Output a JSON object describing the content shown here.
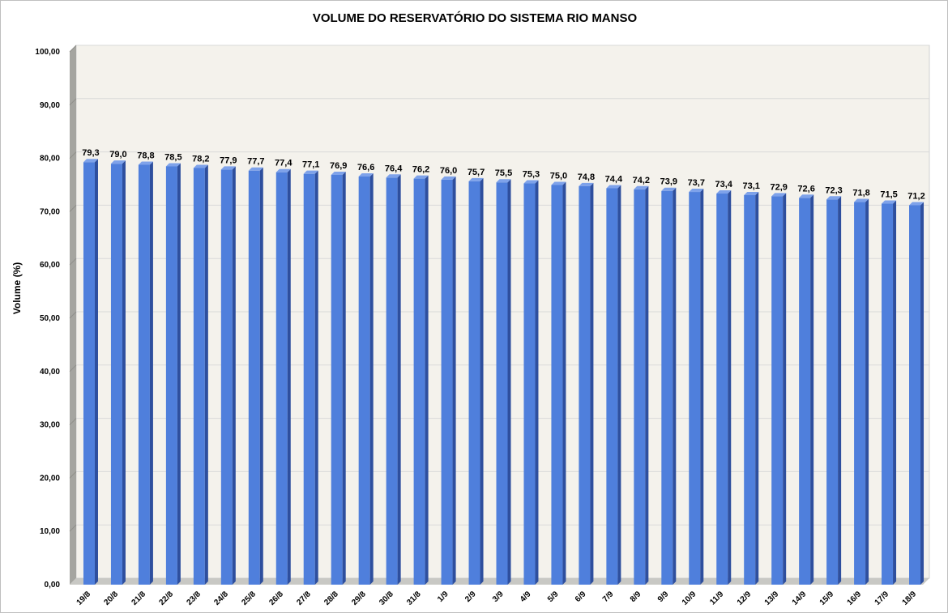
{
  "chart_data": {
    "type": "bar",
    "title": "VOLUME DO RESERVATÓRIO DO SISTEMA RIO MANSO",
    "xlabel": "",
    "ylabel": "Volume (%)",
    "ylim": [
      0,
      100
    ],
    "yticks": [
      "0,00",
      "10,00",
      "20,00",
      "30,00",
      "40,00",
      "50,00",
      "60,00",
      "70,00",
      "80,00",
      "90,00",
      "100,00"
    ],
    "categories": [
      "19/8",
      "20/8",
      "21/8",
      "22/8",
      "23/8",
      "24/8",
      "25/8",
      "26/8",
      "27/8",
      "28/8",
      "29/8",
      "30/8",
      "31/8",
      "1/9",
      "2/9",
      "3/9",
      "4/9",
      "5/9",
      "6/9",
      "7/9",
      "8/9",
      "9/9",
      "10/9",
      "11/9",
      "12/9",
      "13/9",
      "14/9",
      "15/9",
      "16/9",
      "17/9",
      "18/9"
    ],
    "values": [
      79.3,
      79.0,
      78.8,
      78.5,
      78.2,
      77.9,
      77.7,
      77.4,
      77.1,
      76.9,
      76.6,
      76.4,
      76.2,
      76.0,
      75.7,
      75.5,
      75.3,
      75.0,
      74.8,
      74.4,
      74.2,
      73.9,
      73.7,
      73.4,
      73.1,
      72.9,
      72.6,
      72.3,
      71.8,
      71.5,
      71.2
    ],
    "value_labels": [
      "79,3",
      "79,0",
      "78,8",
      "78,5",
      "78,2",
      "77,9",
      "77,7",
      "77,4",
      "77,1",
      "76,9",
      "76,6",
      "76,4",
      "76,2",
      "76,0",
      "75,7",
      "75,5",
      "75,3",
      "75,0",
      "74,8",
      "74,4",
      "74,2",
      "73,9",
      "73,7",
      "73,4",
      "73,1",
      "72,9",
      "72,6",
      "72,3",
      "71,8",
      "71,5",
      "71,2"
    ],
    "grid": true,
    "legend": "none",
    "colors": {
      "bar_front": "#4f7fdc",
      "bar_side": "#2e4f9e",
      "bar_top": "#7ea2ea",
      "plot_back": "#f4f2ec",
      "back_wall_side": "#a5a5a0",
      "gridline": "#d9d9d9"
    }
  }
}
